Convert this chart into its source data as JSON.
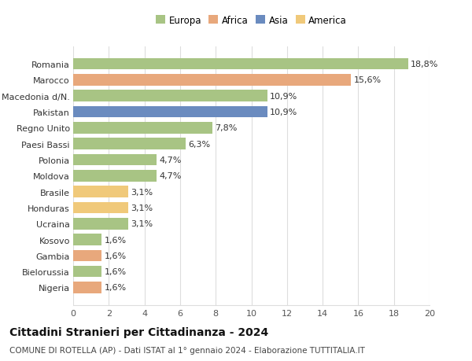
{
  "categories": [
    "Nigeria",
    "Bielorussia",
    "Gambia",
    "Kosovo",
    "Ucraina",
    "Honduras",
    "Brasile",
    "Moldova",
    "Polonia",
    "Paesi Bassi",
    "Regno Unito",
    "Pakistan",
    "Macedonia d/N.",
    "Marocco",
    "Romania"
  ],
  "values": [
    1.6,
    1.6,
    1.6,
    1.6,
    3.1,
    3.1,
    3.1,
    4.7,
    4.7,
    6.3,
    7.8,
    10.9,
    10.9,
    15.6,
    18.8
  ],
  "continents": [
    "Africa",
    "Europa",
    "Africa",
    "Europa",
    "Europa",
    "America",
    "America",
    "Europa",
    "Europa",
    "Europa",
    "Europa",
    "Asia",
    "Europa",
    "Africa",
    "Europa"
  ],
  "colors": {
    "Europa": "#a8c484",
    "Africa": "#e8a87c",
    "Asia": "#6a8bbf",
    "America": "#f0c97a"
  },
  "legend_order": [
    "Europa",
    "Africa",
    "Asia",
    "America"
  ],
  "xlim": [
    0,
    20
  ],
  "xticks": [
    0,
    2,
    4,
    6,
    8,
    10,
    12,
    14,
    16,
    18,
    20
  ],
  "title": "Cittadini Stranieri per Cittadinanza - 2024",
  "subtitle": "COMUNE DI ROTELLA (AP) - Dati ISTAT al 1° gennaio 2024 - Elaborazione TUTTITALIA.IT",
  "background_color": "#ffffff",
  "grid_color": "#dddddd",
  "bar_height": 0.72,
  "label_fontsize": 8,
  "tick_fontsize": 8,
  "title_fontsize": 10,
  "subtitle_fontsize": 7.5
}
